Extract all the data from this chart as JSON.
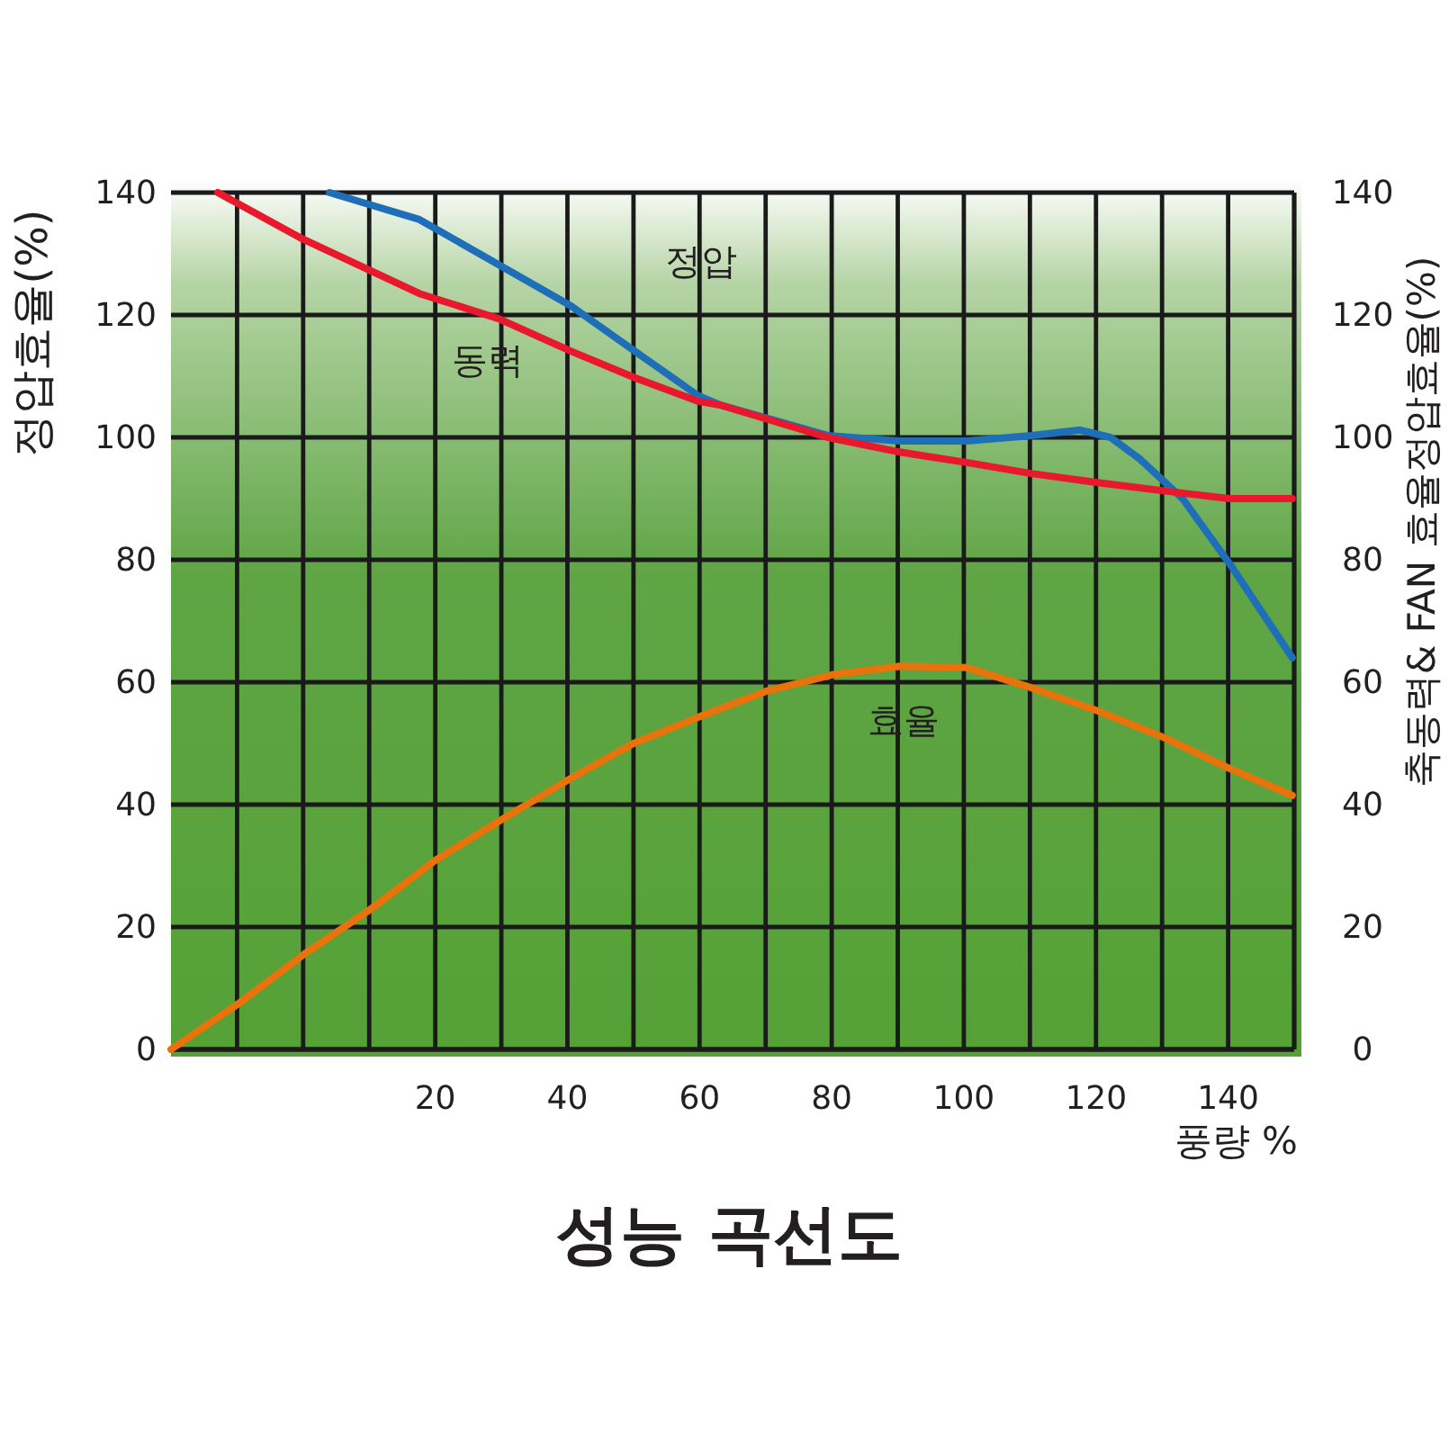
{
  "chart_data": {
    "type": "line",
    "title": "성능 곡선도",
    "xlabel": "풍량 %",
    "ylabel": "정압효율(%)",
    "y2label": "축동력& FAN 효율정압효율(%)",
    "xlim": [
      -20,
      150
    ],
    "xticks": [
      {
        "value": -10,
        "label": null
      },
      {
        "value": 0,
        "label": null
      },
      {
        "value": 10,
        "label": null
      },
      20,
      {
        "value": 30,
        "label": null
      },
      40,
      {
        "value": 50,
        "label": null
      },
      60,
      {
        "value": 70,
        "label": null
      },
      80,
      {
        "value": 90,
        "label": null
      },
      100,
      {
        "value": 110,
        "label": null
      },
      120,
      {
        "value": 130,
        "label": null
      },
      140
    ],
    "ylim": [
      0,
      140
    ],
    "yticks": [
      0,
      20,
      40,
      60,
      80,
      100,
      120,
      140
    ],
    "y2lim": [
      0,
      140
    ],
    "y2ticks": [
      0,
      20,
      40,
      60,
      80,
      100,
      120,
      140
    ],
    "grid": true,
    "legend": false,
    "marker": "none",
    "series": [
      {
        "name": "정압",
        "color": "#1f6fb8",
        "x": [
          4,
          17.6,
          40.5,
          50.3,
          59.8,
          63.1,
          79.4,
          90.3,
          100.4,
          110.2,
          117.6,
          122.2,
          126.6,
          133.1,
          140.2,
          149.7
        ],
        "values": [
          140,
          135.6,
          121.5,
          114,
          106.8,
          105.3,
          100.3,
          99.4,
          99.4,
          100.3,
          101.2,
          100,
          96.5,
          90,
          79.4,
          64
        ]
      },
      {
        "name": "동력",
        "color": "#e8192c",
        "x": [
          -12.9,
          -0.4,
          17.6,
          29.6,
          40.5,
          50.3,
          59.8,
          63.1,
          79.4,
          90.3,
          100.4,
          110.2,
          120.3,
          133.1,
          140.2,
          149.7
        ],
        "values": [
          140,
          132.6,
          123.5,
          119.4,
          114.1,
          109.7,
          105.9,
          105.3,
          100,
          97.6,
          95.9,
          94.1,
          92.6,
          90.9,
          90,
          90
        ]
      },
      {
        "name": "효율",
        "color": "#e8720c",
        "x": [
          -20,
          -9.9,
          0.2,
          10.2,
          20,
          30.1,
          40.2,
          50,
          60.1,
          70,
          80,
          90.3,
          100.4,
          110.2,
          120.3,
          130.4,
          140.2,
          149.7
        ],
        "values": [
          0,
          7.4,
          15.6,
          22.9,
          30.9,
          37.6,
          44.1,
          50,
          54.4,
          58.5,
          61.2,
          62.6,
          62.4,
          59.1,
          55.3,
          50.9,
          45.9,
          41.5
        ]
      }
    ]
  }
}
